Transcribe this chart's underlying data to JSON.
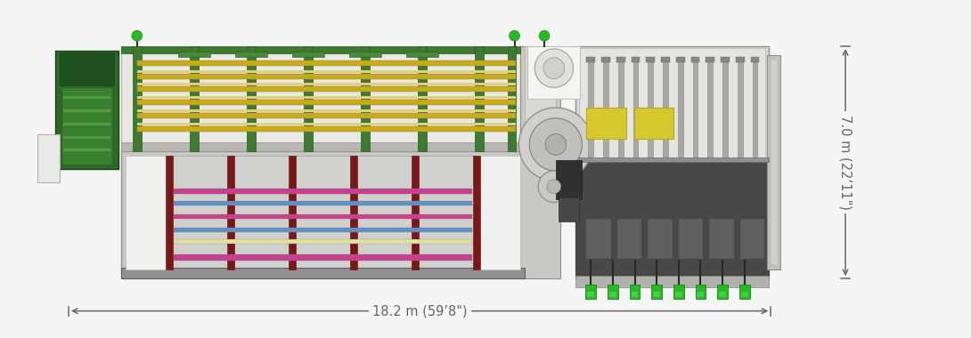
{
  "background_color": "#f5f5f5",
  "fig_width": 10.9,
  "fig_height": 3.8,
  "dpi": 100,
  "annotation_color": "#666666",
  "arrow_color": "#666666",
  "width_label": "18.2 m (59’8\")",
  "height_label": "7.0 m (22’11\")",
  "font_size_labels": 10.5
}
